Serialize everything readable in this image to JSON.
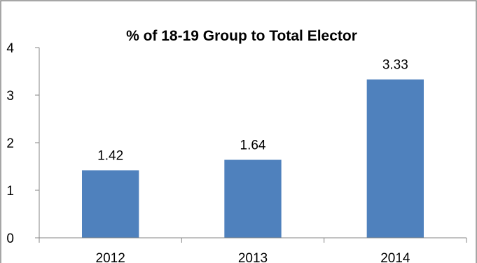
{
  "chart_data": {
    "type": "bar",
    "title": "% of 18-19 Group to Total Elector",
    "xlabel": "",
    "ylabel": "",
    "categories": [
      "2012",
      "2013",
      "2014"
    ],
    "values": [
      1.42,
      1.64,
      3.33
    ],
    "data_labels": [
      "1.42",
      "1.64",
      "3.33"
    ],
    "y_ticks": [
      "0",
      "1",
      "2",
      "3",
      "4"
    ],
    "ylim": [
      0,
      4
    ],
    "grid": false,
    "legend": "none",
    "bar_color": "#4F81BD",
    "border_color": "#888888"
  }
}
